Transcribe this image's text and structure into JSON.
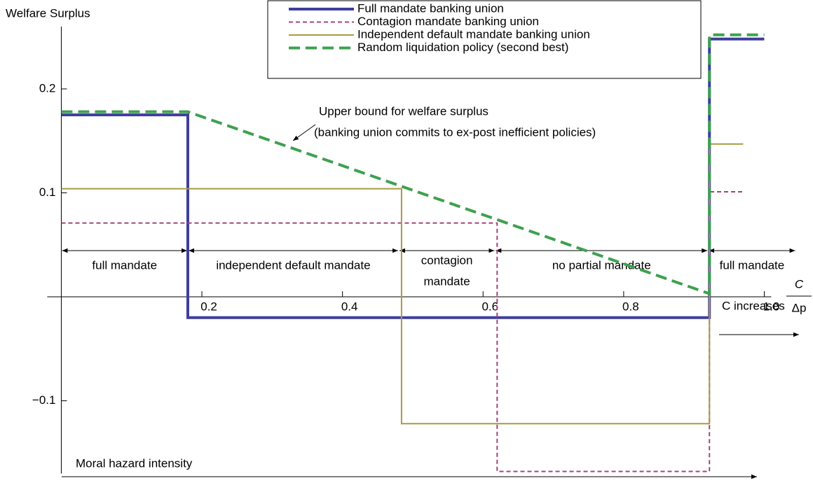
{
  "chart_data": {
    "type": "line",
    "y_label": "Welfare Surplus",
    "x_label": {
      "numerator": "C",
      "denominator": "Δp"
    },
    "xlim": [
      -0.02,
      1.01
    ],
    "ylim": [
      -0.17,
      0.26
    ],
    "xticks": [
      0.2,
      0.4,
      0.6,
      0.8,
      {
        "value": 1,
        "label": "1.0"
      }
    ],
    "yticks": [
      {
        "value": -0.1,
        "label": "−0.1"
      },
      0.1,
      0.2
    ],
    "legend": "top",
    "series": [
      {
        "name": "Full mandate banking union",
        "color": "#3e3e9e",
        "style": "solid",
        "x": [
          0,
          0.18,
          0.18,
          0.922,
          0.922,
          1.0
        ],
        "values": [
          0.175,
          0.175,
          -0.02,
          -0.02,
          0.248,
          0.248
        ]
      },
      {
        "name": "Contagion mandate banking union",
        "color": "#a3447c",
        "style": "dashed",
        "x": [
          0,
          0.62,
          0.62,
          0.922,
          0.922,
          0.97
        ],
        "values": [
          0.071,
          0.071,
          -0.168,
          -0.168,
          0.101,
          0.101
        ]
      },
      {
        "name": "Independent default mandate banking union",
        "color": "#a89a44",
        "style": "solid",
        "x": [
          0,
          0.484,
          0.484,
          0.922,
          0.922,
          0.97
        ],
        "values": [
          0.104,
          0.104,
          -0.122,
          -0.122,
          0.147,
          0.147
        ]
      },
      {
        "name": "Random liquidation policy (second best)",
        "color": "#3ea050",
        "style": "thick-dashed",
        "x": [
          0,
          0.18,
          0.922,
          0.922,
          1.0
        ],
        "values": [
          0.178,
          0.178,
          0.003,
          0.252,
          0.252
        ]
      }
    ],
    "regions": [
      {
        "label": [
          "full mandate"
        ],
        "from": 0,
        "to": 0.18
      },
      {
        "label": [
          "independent default mandate"
        ],
        "from": 0.18,
        "to": 0.48
      },
      {
        "label": [
          "contagion",
          "mandate"
        ],
        "from": 0.48,
        "to": 0.617
      },
      {
        "label": [
          "no partial mandate"
        ],
        "from": 0.617,
        "to": 0.92
      },
      {
        "label": [
          "full mandate"
        ],
        "from": 0.92,
        "to": 1.045
      }
    ],
    "annotations": {
      "upper_bound": [
        "Upper bound for welfare surplus",
        "(banking union commits to ex-post inefficient policies)"
      ],
      "c_increases": "C increases",
      "moral_hazard": "Moral hazard intensity"
    }
  }
}
